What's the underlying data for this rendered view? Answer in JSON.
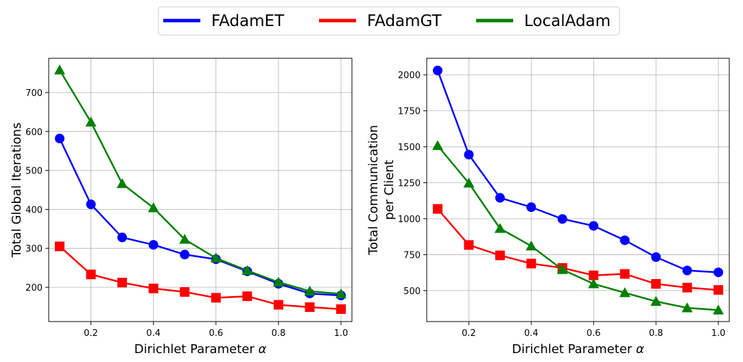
{
  "legend": [
    {
      "name": "FAdamET",
      "color": "#0000ff",
      "marker": "circle"
    },
    {
      "name": "FAdamGT",
      "color": "#ff0000",
      "marker": "square"
    },
    {
      "name": "LocalAdam",
      "color": "#008000",
      "marker": "triangle"
    }
  ],
  "chart_data": [
    {
      "type": "line",
      "title": "",
      "xlabel": "Dirichlet Parameter α",
      "ylabel": "Total Global Iterations",
      "ylabel_lines": [
        "Total Global Iterations"
      ],
      "x": [
        0.1,
        0.2,
        0.3,
        0.4,
        0.5,
        0.6,
        0.7,
        0.8,
        0.9,
        1.0
      ],
      "xlim": [
        0.065,
        1.035
      ],
      "ylim": [
        112,
        788
      ],
      "xticks": [
        0.2,
        0.4,
        0.6,
        0.8,
        1.0
      ],
      "xtick_labels": [
        "0.2",
        "0.4",
        "0.6",
        "0.8",
        "1.0"
      ],
      "yticks": [
        200,
        300,
        400,
        500,
        600,
        700
      ],
      "ytick_labels": [
        "200",
        "300",
        "400",
        "500",
        "600",
        "700"
      ],
      "grid": true,
      "series": [
        {
          "name": "FAdamET",
          "values": [
            582,
            413,
            328,
            309,
            284,
            272,
            241,
            209,
            184,
            179
          ]
        },
        {
          "name": "FAdamGT",
          "values": [
            305,
            233,
            212,
            197,
            188,
            173,
            177,
            155,
            149,
            144
          ]
        },
        {
          "name": "LocalAdam",
          "values": [
            758,
            624,
            466,
            404,
            323,
            275,
            243,
            213,
            190,
            183
          ]
        }
      ]
    },
    {
      "type": "line",
      "title": "",
      "xlabel": "Dirichlet Parameter α",
      "ylabel": "Total Communication per Client",
      "ylabel_lines": [
        "Total Communication",
        "per Client"
      ],
      "x": [
        0.1,
        0.2,
        0.3,
        0.4,
        0.5,
        0.6,
        0.7,
        0.8,
        0.9,
        1.0
      ],
      "xlim": [
        0.065,
        1.035
      ],
      "ylim": [
        285,
        2115
      ],
      "xticks": [
        0.2,
        0.4,
        0.6,
        0.8,
        1.0
      ],
      "xtick_labels": [
        "0.2",
        "0.4",
        "0.6",
        "0.8",
        "1.0"
      ],
      "yticks": [
        500,
        750,
        1000,
        1250,
        1500,
        1750,
        2000
      ],
      "ytick_labels": [
        "500",
        "750",
        "1000",
        "1250",
        "1500",
        "1750",
        "2000"
      ],
      "grid": true,
      "series": [
        {
          "name": "FAdamET",
          "values": [
            2030,
            1445,
            1145,
            1080,
            998,
            950,
            850,
            733,
            640,
            627
          ]
        },
        {
          "name": "FAdamGT",
          "values": [
            1068,
            817,
            745,
            688,
            658,
            606,
            616,
            547,
            521,
            505
          ]
        },
        {
          "name": "LocalAdam",
          "values": [
            1508,
            1247,
            932,
            810,
            646,
            547,
            485,
            425,
            380,
            365
          ]
        }
      ]
    }
  ]
}
